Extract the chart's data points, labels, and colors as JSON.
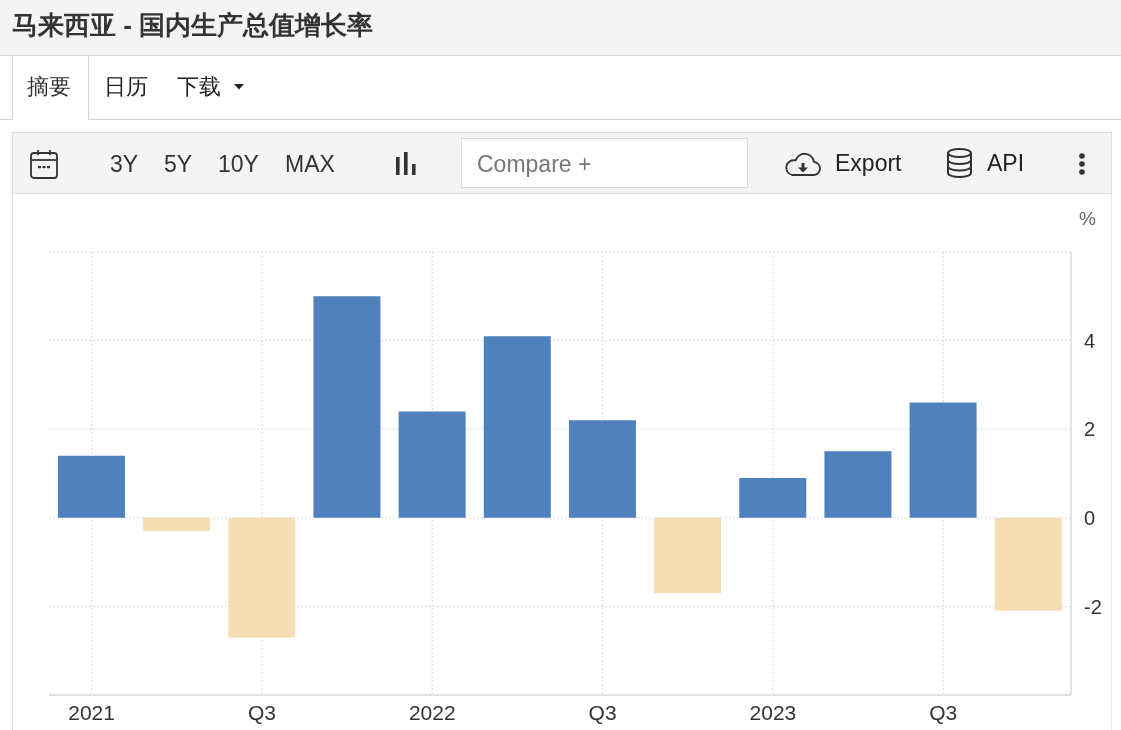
{
  "chart_data": {
    "type": "bar",
    "title": "马来西亚 - 国内生产总值增长率",
    "ylabel": "%",
    "categories": [
      "2021",
      null,
      "Q3",
      null,
      "2022",
      null,
      "Q3",
      null,
      "2023",
      null,
      "Q3",
      null
    ],
    "values": [
      1.4,
      -0.3,
      -2.7,
      5.0,
      2.4,
      4.1,
      2.2,
      -1.7,
      0.9,
      1.5,
      2.6,
      -2.1
    ],
    "colors": [
      "#4f81bd",
      "#f5deb3",
      "#f5deb3",
      "#4f81bd",
      "#4f81bd",
      "#4f81bd",
      "#4f81bd",
      "#f5deb3",
      "#4f81bd",
      "#4f81bd",
      "#4f81bd",
      "#f5deb3"
    ],
    "ylim": [
      -4,
      6
    ],
    "yticks": [
      -2,
      0,
      2,
      4,
      {
        "value": 6,
        "label": null
      }
    ],
    "grid": true,
    "annotations": [
      "摘要",
      "日历",
      "下载",
      "3Y",
      "5Y",
      "10Y",
      "MAX",
      "Compare +",
      "Export",
      "API"
    ]
  }
}
